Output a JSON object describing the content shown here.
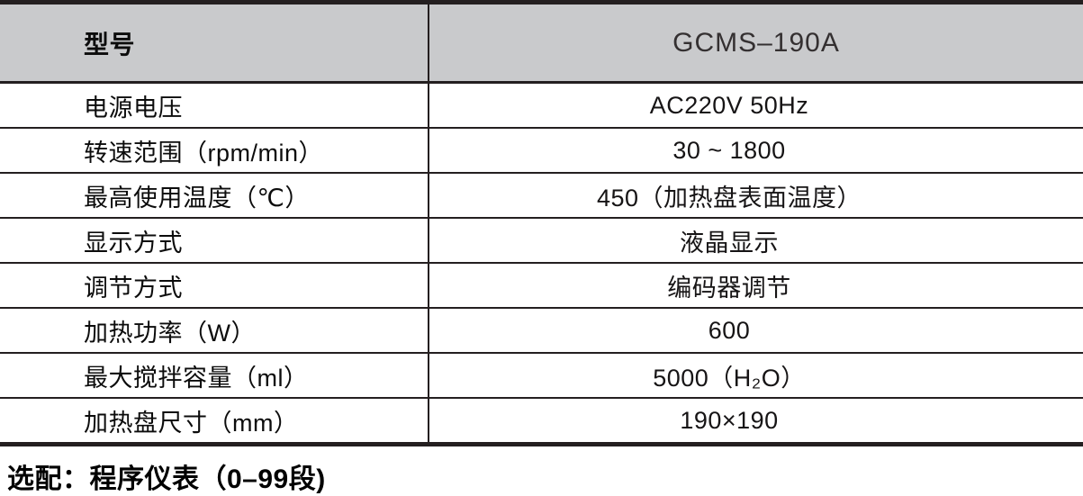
{
  "table": {
    "header": {
      "label": "型号",
      "value": "GCMS–190A"
    },
    "rows": [
      {
        "label": "电源电压",
        "value": "AC220V 50Hz"
      },
      {
        "label": "转速范围（rpm/min）",
        "value": "30 ~ 1800"
      },
      {
        "label": "最高使用温度（℃）",
        "value": "450（加热盘表面温度）"
      },
      {
        "label": "显示方式",
        "value": "液晶显示"
      },
      {
        "label": "调节方式",
        "value": "编码器调节"
      },
      {
        "label": "加热功率（W）",
        "value": "600"
      },
      {
        "label": "最大搅拌容量（ml）",
        "value": "5000（H₂O）"
      },
      {
        "label": "加热盘尺寸（mm）",
        "value": "190×190"
      }
    ]
  },
  "footnote": {
    "text": "选配：程序仪表（0–99段)"
  },
  "colors": {
    "header_background": "#c9cacc",
    "border_dark": "#241f20",
    "page_background": "#ffffff"
  }
}
